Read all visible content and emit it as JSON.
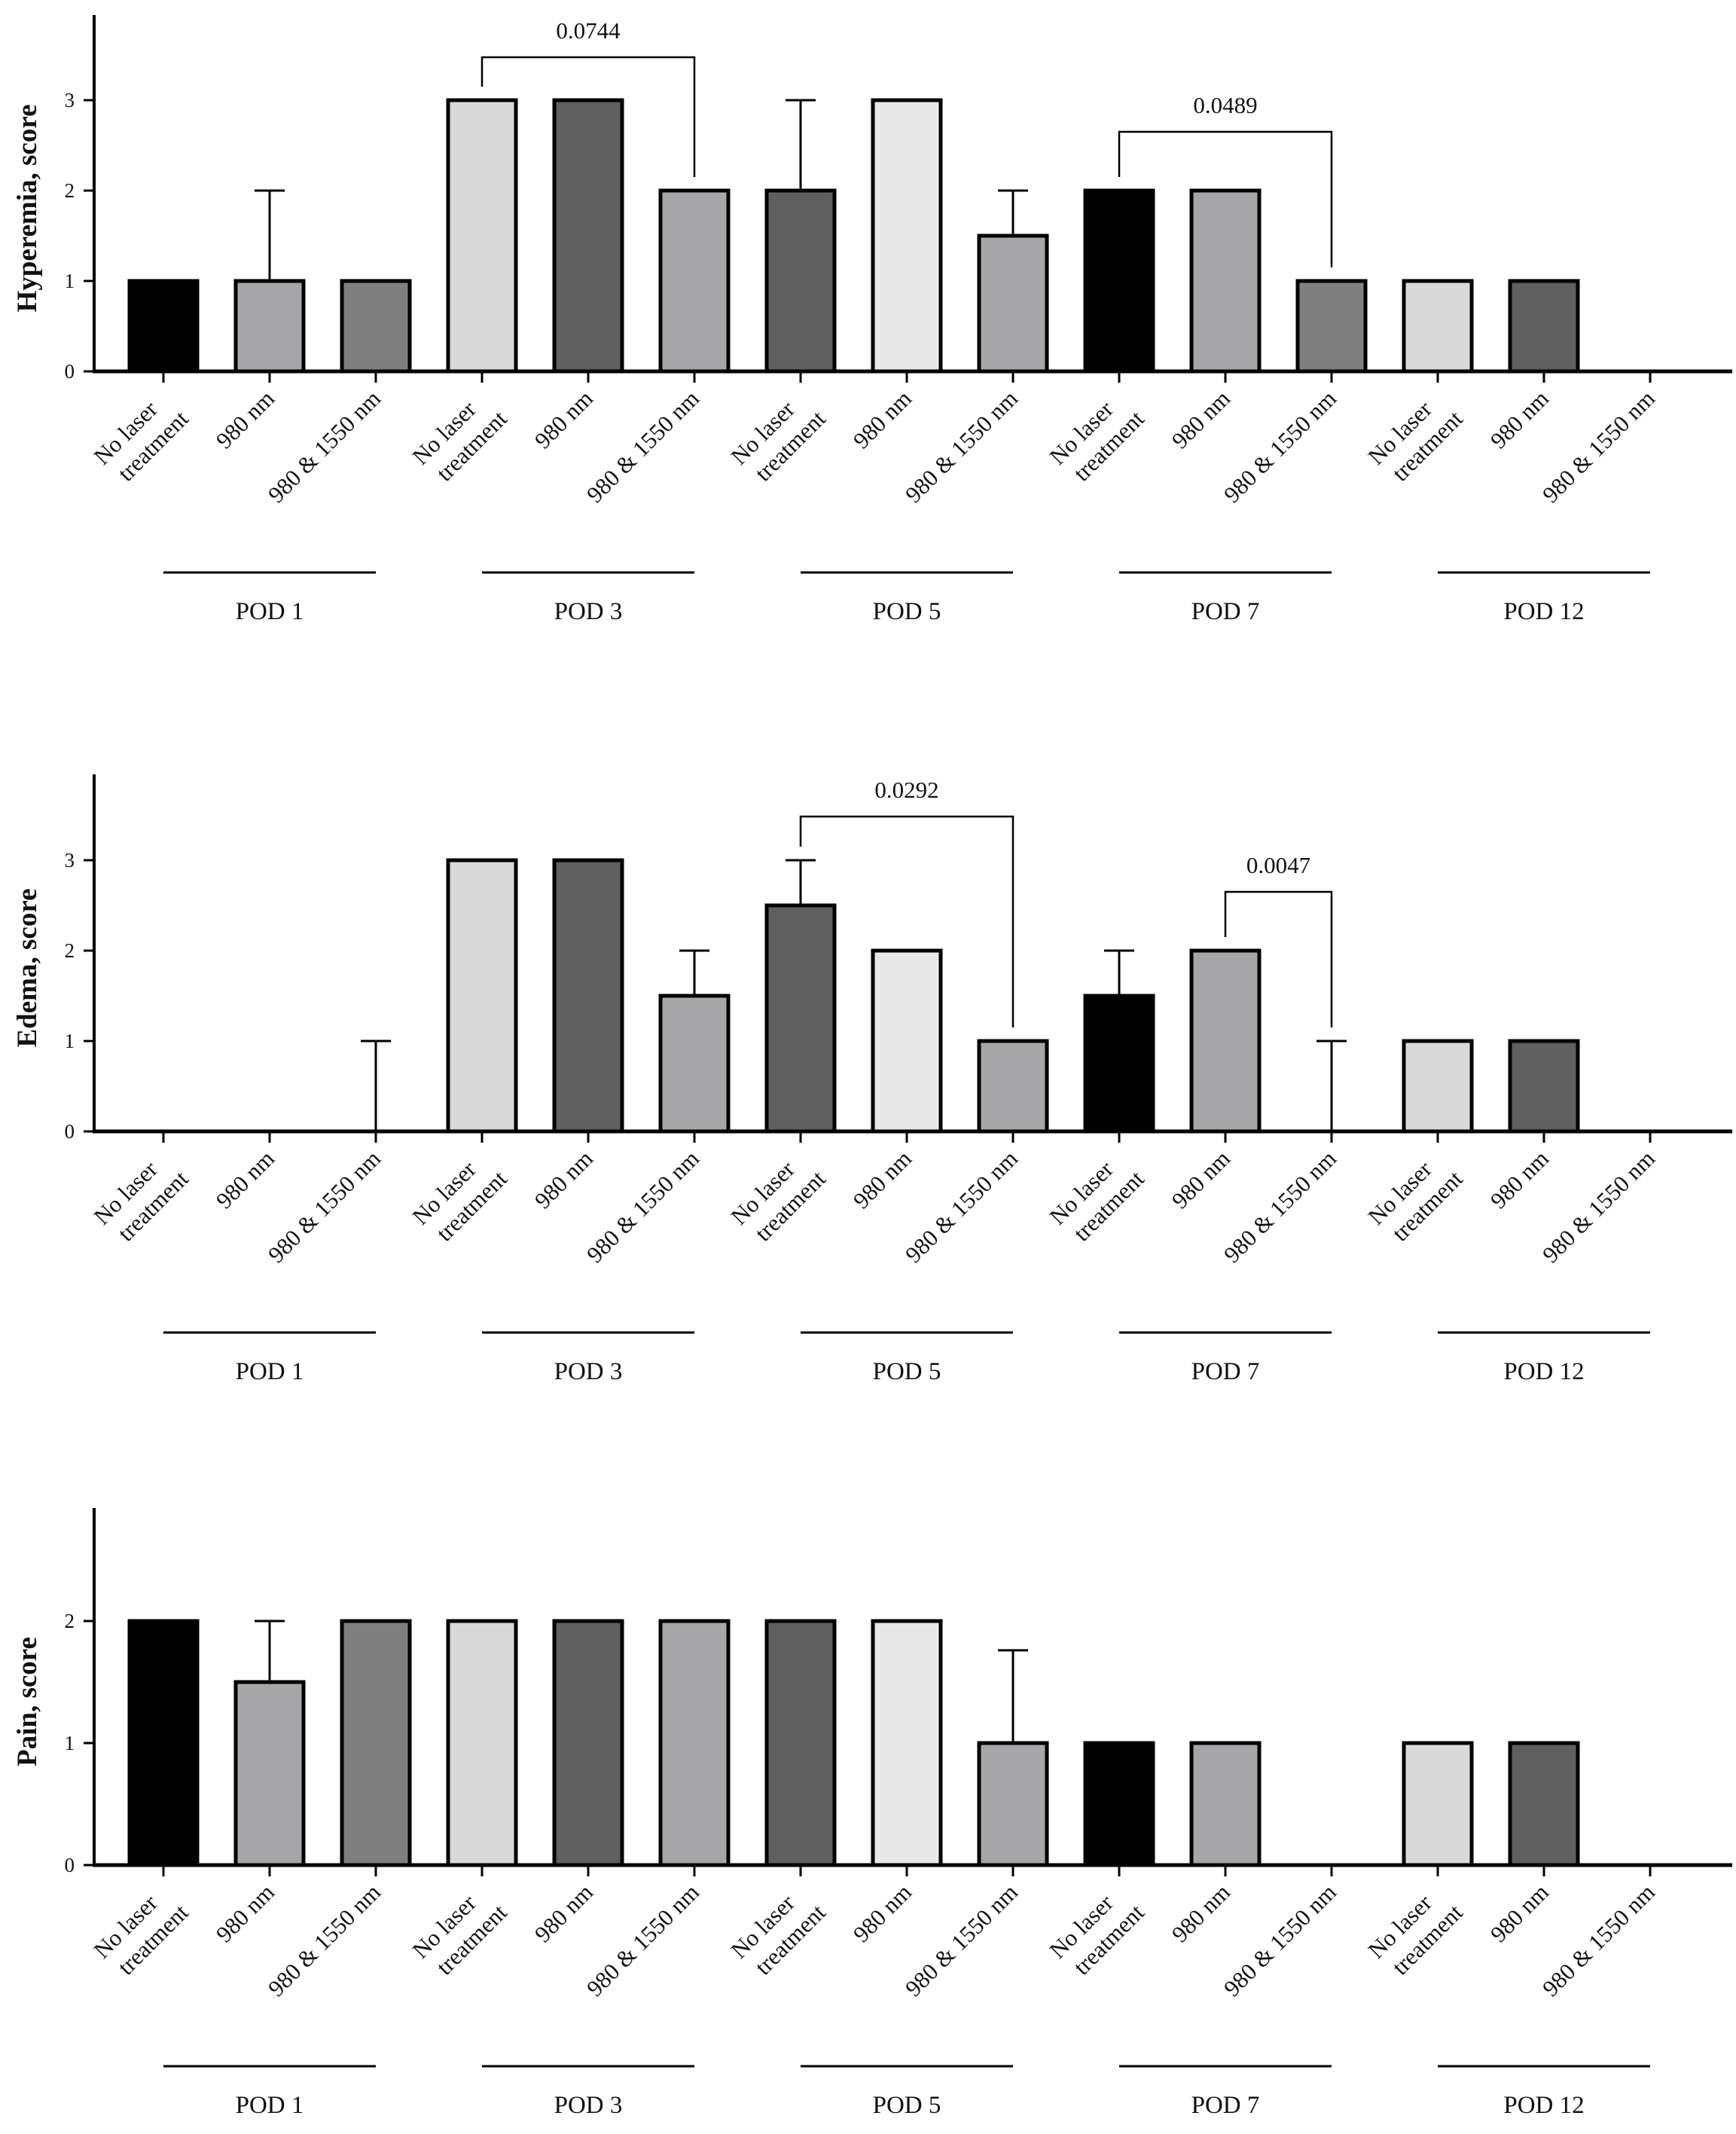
{
  "chart_data": [
    {
      "type": "bar",
      "ylabel": "Hyperemia, score",
      "ylim": [
        0,
        3.9
      ],
      "yticks": [
        0,
        1,
        2,
        3
      ],
      "categories": [
        "No laser treatment",
        "980 nm",
        "980 & 1550 nm",
        "No laser treatment",
        "980 nm",
        "980 & 1550 nm",
        "No laser treatment",
        "980 nm",
        "980 & 1550 nm",
        "No laser treatment",
        "980 nm",
        "980 & 1550 nm",
        "No laser treatment",
        "980 nm",
        "980 & 1550 nm"
      ],
      "groups": [
        "POD 1",
        "POD 3",
        "POD 5",
        "POD 7",
        "POD 12"
      ],
      "values": [
        1,
        1,
        1,
        3,
        3,
        2,
        2,
        3,
        1.5,
        2,
        2,
        1,
        1,
        1,
        0
      ],
      "error_upper": [
        1,
        2,
        1,
        3,
        3,
        2,
        3,
        3,
        2,
        2,
        2,
        1,
        1,
        1,
        0
      ],
      "colors": [
        "#000000",
        "#a6a6a9",
        "#7f7f7f",
        "#d9d9d9",
        "#5f5f5f",
        "#a6a6a9",
        "#5f5f5f",
        "#e8e8e8",
        "#a6a6a9",
        "#000000",
        "#a6a6a9",
        "#7f7f7f",
        "#d9d9d9",
        "#5f5f5f",
        "#ffffff"
      ],
      "annotations": [
        {
          "from": 3,
          "to": 5,
          "label": "0.0744"
        },
        {
          "from": 9,
          "to": 11,
          "label": "0.0489"
        }
      ]
    },
    {
      "type": "bar",
      "ylabel": "Edema, score",
      "ylim": [
        0,
        3.9
      ],
      "yticks": [
        0,
        1,
        2,
        3
      ],
      "categories": [
        "No laser treatment",
        "980 nm",
        "980 & 1550 nm",
        "No laser treatment",
        "980 nm",
        "980 & 1550 nm",
        "No laser treatment",
        "980 nm",
        "980 & 1550 nm",
        "No laser treatment",
        "980 nm",
        "980 & 1550 nm",
        "No laser treatment",
        "980 nm",
        "980 & 1550 nm"
      ],
      "groups": [
        "POD 1",
        "POD 3",
        "POD 5",
        "POD 7",
        "POD 12"
      ],
      "values": [
        0,
        0,
        0,
        3,
        3,
        1.5,
        2.5,
        2,
        1,
        1.5,
        2,
        0,
        1,
        1,
        0
      ],
      "error_upper": [
        0,
        0,
        1,
        3,
        3,
        2,
        3,
        2,
        1,
        2,
        2,
        1,
        1,
        1,
        0
      ],
      "colors": [
        "#000000",
        "#a6a6a9",
        "#7f7f7f",
        "#d9d9d9",
        "#5f5f5f",
        "#a6a6a9",
        "#5f5f5f",
        "#e8e8e8",
        "#a6a6a9",
        "#000000",
        "#a6a6a9",
        "#7f7f7f",
        "#d9d9d9",
        "#5f5f5f",
        "#ffffff"
      ],
      "annotations": [
        {
          "from": 6,
          "to": 8,
          "label": "0.0292"
        },
        {
          "from": 10,
          "to": 11,
          "label": "0.0047"
        }
      ]
    },
    {
      "type": "bar",
      "ylabel": "Pain, score",
      "ylim": [
        0,
        2.9
      ],
      "yticks": [
        0,
        1,
        2
      ],
      "categories": [
        "No laser treatment",
        "980 nm",
        "980 & 1550 nm",
        "No laser treatment",
        "980 nm",
        "980 & 1550 nm",
        "No laser treatment",
        "980 nm",
        "980 & 1550 nm",
        "No laser treatment",
        "980 nm",
        "980 & 1550 nm",
        "No laser treatment",
        "980 nm",
        "980 & 1550 nm"
      ],
      "groups": [
        "POD 1",
        "POD 3",
        "POD 5",
        "POD 7",
        "POD 12"
      ],
      "values": [
        2,
        1.5,
        2,
        2,
        2,
        2,
        2,
        2,
        1,
        1,
        1,
        0,
        1,
        1,
        0
      ],
      "error_upper": [
        2,
        2,
        2,
        2,
        2,
        2,
        2,
        2,
        1.76,
        1,
        1,
        0,
        1,
        1,
        0
      ],
      "colors": [
        "#000000",
        "#a6a6a9",
        "#7f7f7f",
        "#d9d9d9",
        "#5f5f5f",
        "#a6a6a9",
        "#5f5f5f",
        "#e8e8e8",
        "#a6a6a9",
        "#000000",
        "#a6a6a9",
        "#7f7f7f",
        "#d9d9d9",
        "#5f5f5f",
        "#ffffff"
      ],
      "annotations": []
    }
  ]
}
